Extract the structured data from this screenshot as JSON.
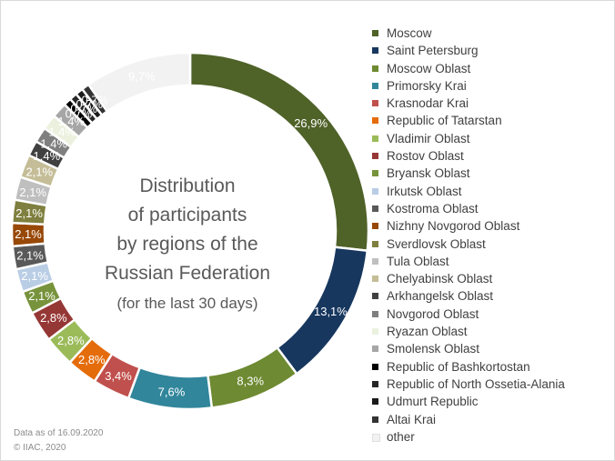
{
  "chart_data": {
    "type": "pie",
    "title": [
      "Distribution",
      "of participants",
      "by regions of the",
      "Russian Federation"
    ],
    "subtitle": "(for the last 30 days)",
    "legend_position": "right",
    "slices": [
      {
        "name": "Moscow",
        "value": 26.9,
        "label": "26,9%",
        "color": "#4f6228"
      },
      {
        "name": "Saint Petersburg",
        "value": 13.1,
        "label": "13,1%",
        "color": "#17375e"
      },
      {
        "name": "Moscow Oblast",
        "value": 8.3,
        "label": "8,3%",
        "color": "#6e8a32"
      },
      {
        "name": "Primorsky Krai",
        "value": 7.6,
        "label": "7,6%",
        "color": "#31869b"
      },
      {
        "name": "Krasnodar Krai",
        "value": 3.4,
        "label": "3,4%",
        "color": "#c0504d"
      },
      {
        "name": "Republic of Tatarstan",
        "value": 2.8,
        "label": "2,8%",
        "color": "#e46c0a"
      },
      {
        "name": "Vladimir Oblast",
        "value": 2.8,
        "label": "2,8%",
        "color": "#9bbb59"
      },
      {
        "name": "Rostov Oblast",
        "value": 2.8,
        "label": "2,8%",
        "color": "#953735"
      },
      {
        "name": "Bryansk Oblast",
        "value": 2.1,
        "label": "2,1%",
        "color": "#77933c"
      },
      {
        "name": "Irkutsk Oblast",
        "value": 2.1,
        "label": "2,1%",
        "color": "#b9cde5"
      },
      {
        "name": "Kostroma Oblast",
        "value": 2.1,
        "label": "2,1%",
        "color": "#595959"
      },
      {
        "name": "Nizhny Novgorod Oblast",
        "value": 2.1,
        "label": "2,1%",
        "color": "#984807"
      },
      {
        "name": "Sverdlovsk Oblast",
        "value": 2.1,
        "label": "2,1%",
        "color": "#7f7f3f"
      },
      {
        "name": "Tula Oblast",
        "value": 2.1,
        "label": "2,1%",
        "color": "#bfbfbf"
      },
      {
        "name": "Chelyabinsk Oblast",
        "value": 2.1,
        "label": "2,1%",
        "color": "#c4bd97"
      },
      {
        "name": "Arkhangelsk Oblast",
        "value": 1.4,
        "label": "1,4%",
        "color": "#404040"
      },
      {
        "name": "Novgorod Oblast",
        "value": 1.4,
        "label": "1,4%",
        "color": "#7f7f7f"
      },
      {
        "name": "Ryazan Oblast",
        "value": 1.4,
        "label": "1,4%",
        "color": "#ebf1de"
      },
      {
        "name": "Smolensk Oblast",
        "value": 1.4,
        "label": "1,4%",
        "color": "#a6a6a6"
      },
      {
        "name": "Republic of Bashkortostan",
        "value": 0.7,
        "label": "0,7%",
        "color": "#000000"
      },
      {
        "name": "Republic of North Ossetia-Alania",
        "value": 0.7,
        "label": "0,7%",
        "color": "#262626"
      },
      {
        "name": "Udmurt Republic",
        "value": 0.7,
        "label": "0,7%",
        "color": "#1a1a1a"
      },
      {
        "name": "Altai Krai",
        "value": 0.7,
        "label": "0,7%",
        "color": "#333333"
      },
      {
        "name": "other",
        "value": 9.7,
        "label": "9,7%",
        "color": "#f2f2f2"
      }
    ]
  },
  "footer": {
    "date": "Data as of 16.09.2020",
    "copyright": "© IIAC, 2020"
  }
}
